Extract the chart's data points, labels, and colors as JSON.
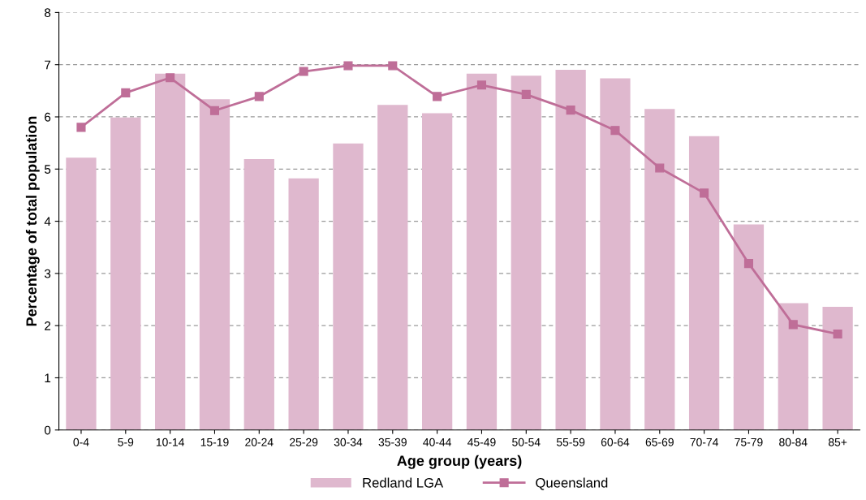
{
  "chart_data": {
    "type": "bar",
    "xlabel": "Age group (years)",
    "ylabel": "Percentage of total population",
    "categories": [
      "0-4",
      "5-9",
      "10-14",
      "15-19",
      "20-24",
      "25-29",
      "30-34",
      "35-39",
      "40-44",
      "45-49",
      "50-54",
      "55-59",
      "60-64",
      "65-69",
      "70-74",
      "75-79",
      "80-84",
      "85+"
    ],
    "series": [
      {
        "name": "Redland LGA",
        "color": "#dfb8ce",
        "values": [
          5.22,
          5.99,
          6.83,
          6.34,
          5.19,
          4.82,
          5.49,
          6.23,
          6.07,
          6.83,
          6.79,
          6.9,
          6.74,
          6.15,
          5.63,
          3.94,
          2.43,
          2.36
        ]
      },
      {
        "name": "Queensland",
        "type": "line",
        "color": "#bf6e98",
        "marker": "square",
        "values": [
          5.8,
          6.46,
          6.75,
          6.12,
          6.39,
          6.87,
          6.98,
          6.98,
          6.39,
          6.61,
          6.43,
          6.13,
          5.74,
          5.02,
          4.54,
          3.19,
          2.02,
          1.84
        ]
      }
    ],
    "ylim": [
      0,
      8
    ],
    "yticks": [
      0,
      1,
      2,
      3,
      4,
      5,
      6,
      7,
      8
    ],
    "grid": "y",
    "legend": "bottom"
  }
}
